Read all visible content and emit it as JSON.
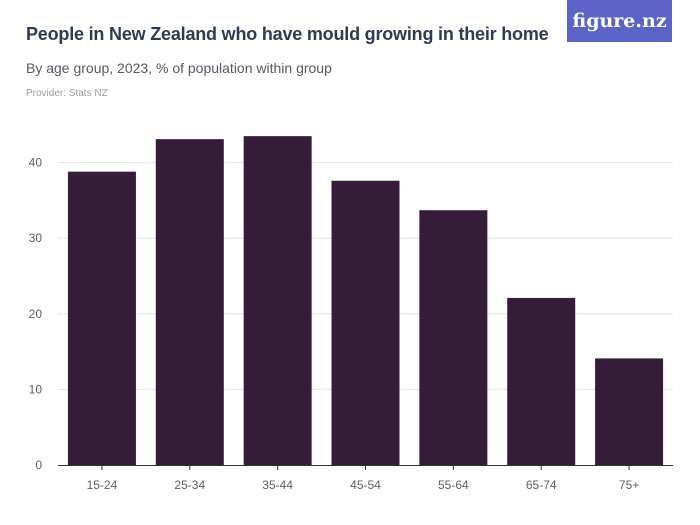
{
  "header": {
    "title": "People in New Zealand who have mould growing in their home",
    "subtitle": "By age group, 2023, % of population within group",
    "provider": "Provider: Stats NZ",
    "logo": "figure.nz"
  },
  "colors": {
    "bar": "#351c38",
    "gridline": "#e3e3e3",
    "axis": "#333333",
    "logo_bg": "#5b63c7"
  },
  "chart_data": {
    "type": "bar",
    "categories": [
      "15-24",
      "25-34",
      "35-44",
      "45-54",
      "55-64",
      "65-74",
      "75+"
    ],
    "values": [
      38.8,
      43.1,
      43.5,
      37.6,
      33.7,
      22.1,
      14.1
    ],
    "ylim": [
      0,
      45
    ],
    "yticks": [
      0,
      10,
      20,
      30,
      40
    ],
    "grid": true
  }
}
